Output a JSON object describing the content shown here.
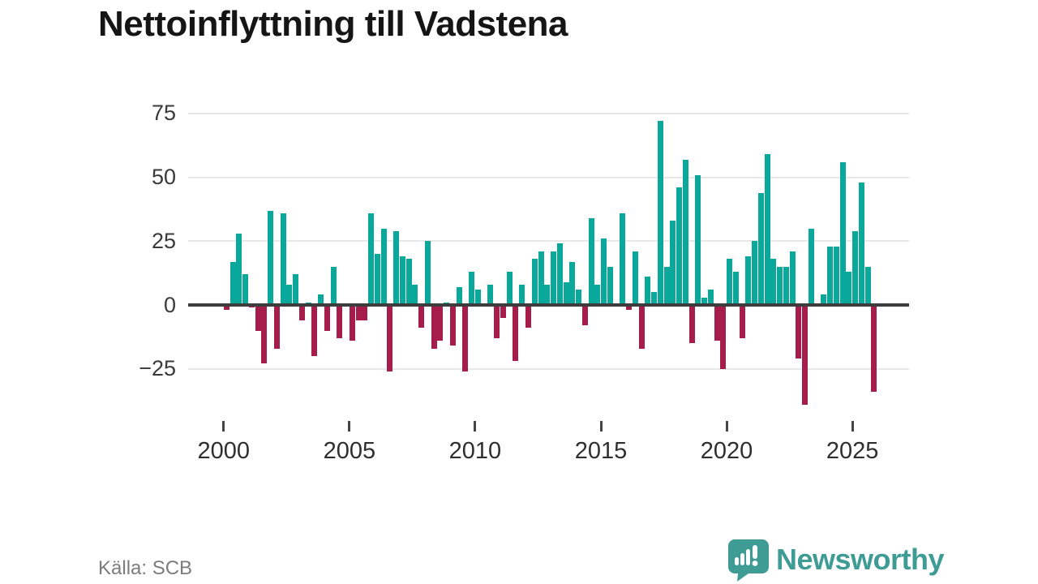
{
  "header": {
    "title": "Nettoinflyttning till Vadstena"
  },
  "footer": {
    "source_label": "Källa: SCB",
    "brand_name": "Newsworthy"
  },
  "colors": {
    "positive_bar": "#0aa79b",
    "negative_bar": "#a61c4b",
    "axis_line": "#3d3d3d",
    "gridline": "#e8e8e8",
    "brand_teal": "#3e9c95",
    "title_text": "#151515",
    "tick_text": "#3a3a3a",
    "source_text": "#7c7c7c"
  },
  "chart_data": {
    "type": "bar",
    "title": "Nettoinflyttning till Vadstena",
    "frequency": "quarterly",
    "start_year": 2000,
    "xlabel": "",
    "ylabel": "",
    "grid": true,
    "legend": false,
    "ylim": [
      -42,
      78
    ],
    "y_ticks": [
      75,
      50,
      25,
      0,
      -25
    ],
    "x_tick_years": [
      2000,
      2005,
      2010,
      2015,
      2020,
      2025
    ],
    "x_tick_labels": [
      "2000",
      "2005",
      "2010",
      "2015",
      "2020",
      "2025"
    ],
    "values": [
      -2,
      17,
      28,
      12,
      -1,
      -10,
      -23,
      37,
      -17,
      36,
      8,
      12,
      -6,
      1,
      -20,
      4,
      -10,
      15,
      -13,
      0,
      -14,
      -6,
      -6,
      36,
      20,
      30,
      -26,
      29,
      19,
      18,
      8,
      -9,
      25,
      -17,
      -14,
      1,
      -16,
      7,
      -26,
      13,
      6,
      0,
      8,
      -13,
      -5,
      13,
      -22,
      8,
      -9,
      18,
      21,
      8,
      21,
      24,
      9,
      17,
      6,
      -8,
      34,
      8,
      26,
      15,
      0,
      36,
      -2,
      21,
      -17,
      11,
      5,
      72,
      15,
      33,
      46,
      57,
      -15,
      51,
      3,
      6,
      -14,
      -25,
      18,
      13,
      -13,
      19,
      25,
      44,
      59,
      18,
      15,
      15,
      21,
      -21,
      -39,
      30,
      0,
      4,
      23,
      23,
      56,
      13,
      29,
      48,
      15,
      -34
    ]
  }
}
